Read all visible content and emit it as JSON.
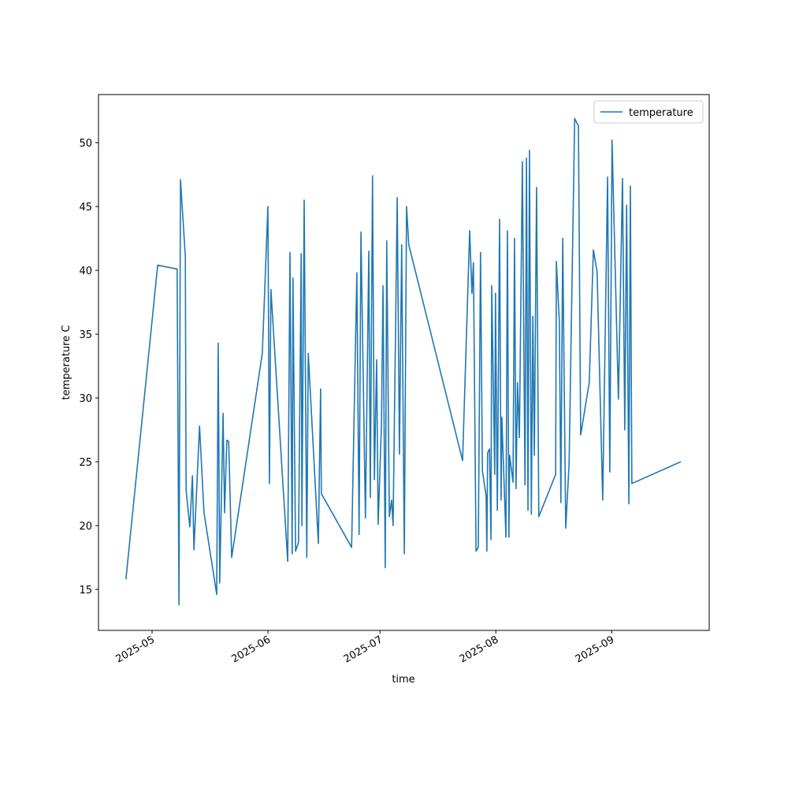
{
  "chart_data": {
    "type": "line",
    "x_label": "time",
    "y_label": "temperature C",
    "x": [
      114.0,
      122.5,
      127.7,
      128.2,
      128.6,
      129.9,
      130.1,
      131.1,
      131.8,
      132.2,
      133.7,
      134.9,
      138.3,
      138.7,
      139.1,
      140.0,
      140.4,
      141.0,
      141.5,
      142.3,
      150.5,
      152.0,
      152.4,
      152.8,
      157.3,
      157.9,
      158.5,
      158.7,
      159.4,
      160.2,
      160.9,
      161.1,
      161.7,
      162.4,
      162.8,
      165.5,
      166.1,
      166.3,
      174.4,
      175.8,
      176.4,
      176.9,
      178.1,
      179.0,
      179.4,
      180.0,
      180.5,
      181.1,
      181.5,
      182.4,
      182.8,
      183.4,
      183.8,
      184.5,
      185.1,
      185.5,
      186.6,
      187.2,
      187.8,
      188.5,
      189.1,
      189.7,
      204.1,
      206.0,
      206.6,
      207.0,
      207.7,
      208.3,
      208.9,
      209.4,
      210.4,
      210.6,
      210.8,
      211.3,
      211.7,
      211.9,
      212.7,
      212.9,
      213.4,
      214.0,
      214.4,
      214.6,
      215.7,
      216.1,
      216.5,
      216.7,
      217.6,
      218.0,
      218.4,
      218.8,
      219.3,
      220.1,
      220.8,
      221.2,
      221.6,
      222.0,
      222.5,
      222.9,
      223.3,
      223.9,
      224.5,
      229.0,
      229.2,
      230.0,
      230.4,
      230.9,
      231.7,
      232.6,
      234.1,
      235.1,
      235.7,
      238.0,
      239.1,
      240.1,
      241.6,
      242.9,
      243.5,
      244.1,
      245.8,
      246.9,
      247.5,
      248.0,
      248.6,
      249.0,
      249.4,
      262.5
    ],
    "series": [
      {
        "name": "temperature",
        "color": "#1f77b4",
        "values": [
          15.8,
          40.4,
          40.1,
          13.8,
          47.1,
          41.1,
          22.8,
          19.9,
          23.9,
          18.1,
          27.8,
          21.0,
          14.6,
          34.3,
          15.5,
          28.8,
          21.0,
          26.7,
          26.6,
          17.5,
          33.5,
          45.0,
          23.3,
          38.5,
          17.2,
          41.4,
          17.8,
          39.4,
          18.0,
          18.7,
          41.3,
          20.0,
          45.5,
          17.5,
          33.5,
          18.6,
          30.7,
          22.5,
          18.3,
          39.8,
          19.3,
          43.0,
          20.6,
          41.5,
          22.2,
          47.4,
          23.6,
          33.0,
          20.1,
          28.1,
          38.8,
          16.7,
          42.3,
          20.7,
          22.0,
          20.0,
          45.7,
          25.6,
          42.0,
          17.8,
          45.0,
          42.0,
          25.1,
          43.1,
          38.2,
          40.6,
          18.0,
          18.3,
          41.4,
          24.3,
          22.3,
          18.0,
          25.7,
          26.0,
          18.9,
          38.8,
          24.0,
          38.2,
          21.2,
          44.0,
          22.0,
          28.5,
          19.1,
          43.1,
          19.1,
          25.5,
          23.4,
          42.5,
          22.9,
          31.2,
          26.9,
          48.5,
          23.2,
          48.8,
          21.2,
          49.4,
          20.9,
          36.4,
          25.5,
          46.5,
          20.7,
          24.0,
          40.7,
          35.9,
          21.8,
          42.5,
          19.8,
          24.8,
          51.9,
          51.3,
          27.1,
          31.2,
          41.6,
          39.9,
          22.0,
          47.3,
          24.2,
          50.2,
          29.9,
          47.2,
          27.5,
          45.1,
          21.7,
          46.6,
          23.3,
          25.0
        ]
      }
    ],
    "xlim": [
      106.66,
      270.1
    ],
    "xticks": [
      {
        "value": 121,
        "label": "2025-05"
      },
      {
        "value": 152,
        "label": "2025-06"
      },
      {
        "value": 182,
        "label": "2025-07"
      },
      {
        "value": 213,
        "label": "2025-08"
      },
      {
        "value": 244,
        "label": "2025-09"
      }
    ],
    "ylim": [
      11.79,
      53.77
    ],
    "yticks": [
      15,
      20,
      25,
      30,
      35,
      40,
      45,
      50
    ],
    "legend": "upper right"
  }
}
